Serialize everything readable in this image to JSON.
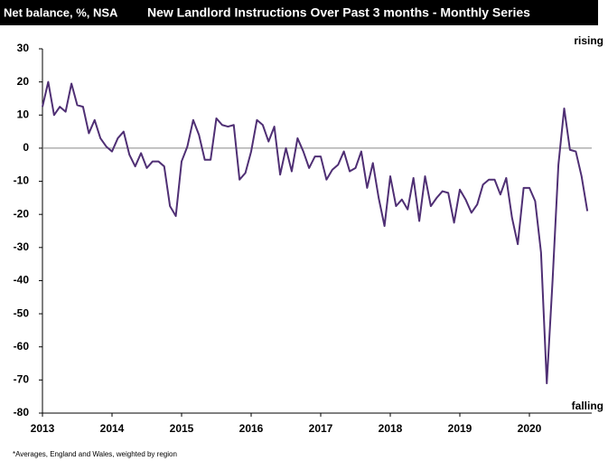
{
  "chart_data": {
    "type": "line",
    "ylabel": "Net balance, %, NSA",
    "title": "New Landlord Instructions Over Past 3 months - Monthly Series",
    "annotations": [
      "rising",
      "falling"
    ],
    "footnote": "*Averages, England and Wales, weighted by region",
    "x": [
      2013,
      2013.083,
      2013.167,
      2013.25,
      2013.333,
      2013.417,
      2013.5,
      2013.583,
      2013.667,
      2013.75,
      2013.833,
      2013.917,
      2014,
      2014.083,
      2014.167,
      2014.25,
      2014.333,
      2014.417,
      2014.5,
      2014.583,
      2014.667,
      2014.75,
      2014.833,
      2014.917,
      2015,
      2015.083,
      2015.167,
      2015.25,
      2015.333,
      2015.417,
      2015.5,
      2015.583,
      2015.667,
      2015.75,
      2015.833,
      2015.917,
      2016,
      2016.083,
      2016.167,
      2016.25,
      2016.333,
      2016.417,
      2016.5,
      2016.583,
      2016.667,
      2016.75,
      2016.833,
      2016.917,
      2017,
      2017.083,
      2017.167,
      2017.25,
      2017.333,
      2017.417,
      2017.5,
      2017.583,
      2017.667,
      2017.75,
      2017.833,
      2017.917,
      2018,
      2018.083,
      2018.167,
      2018.25,
      2018.333,
      2018.417,
      2018.5,
      2018.583,
      2018.667,
      2018.75,
      2018.833,
      2018.917,
      2019,
      2019.083,
      2019.167,
      2019.25,
      2019.333,
      2019.417,
      2019.5,
      2019.583,
      2019.667,
      2019.75,
      2019.833,
      2019.917,
      2020,
      2020.083,
      2020.167,
      2020.25,
      2020.333,
      2020.417,
      2020.5,
      2020.583,
      2020.667,
      2020.75,
      2020.833
    ],
    "series": [
      {
        "name": "New Landlord Instructions",
        "color": "#4f2f74",
        "values": [
          12.5,
          20,
          10,
          12.5,
          11,
          19.5,
          13,
          12.5,
          4.5,
          8.5,
          3,
          0.5,
          -1,
          3,
          5,
          -2,
          -5.5,
          -1.5,
          -6,
          -4,
          -4,
          -5.5,
          -17.5,
          -20.5,
          -4,
          0.5,
          8.5,
          4,
          -3.5,
          -3.5,
          9,
          7,
          6.5,
          7,
          -9.5,
          -7.5,
          -1,
          8.5,
          7,
          2,
          6.5,
          -8,
          0,
          -7,
          3,
          -1,
          -6,
          -2.5,
          -2.5,
          -9.5,
          -6.5,
          -5,
          -1,
          -7,
          -6,
          -1,
          -12,
          -4.5,
          -15,
          -23.5,
          -8.5,
          -17.5,
          -15.5,
          -18.5,
          -9,
          -22,
          -8.5,
          -17.5,
          -15,
          -13,
          -13.5,
          -22.5,
          -12.5,
          -15.5,
          -19.5,
          -17,
          -11,
          -9.5,
          -9.5,
          -14,
          -9,
          -21,
          -29,
          -12,
          -12,
          -16,
          -31.5,
          -71,
          -40,
          -5,
          12,
          -0.5,
          -1,
          -8.5,
          -19
        ]
      }
    ],
    "xlim": [
      2013,
      2021
    ],
    "xticks": [
      2013,
      2014,
      2015,
      2016,
      2017,
      2018,
      2019,
      2020
    ],
    "ylim": [
      -80,
      30
    ],
    "yticks": [
      30,
      20,
      10,
      0,
      -10,
      -20,
      -30,
      -40,
      -50,
      -60,
      -70,
      -80
    ]
  }
}
